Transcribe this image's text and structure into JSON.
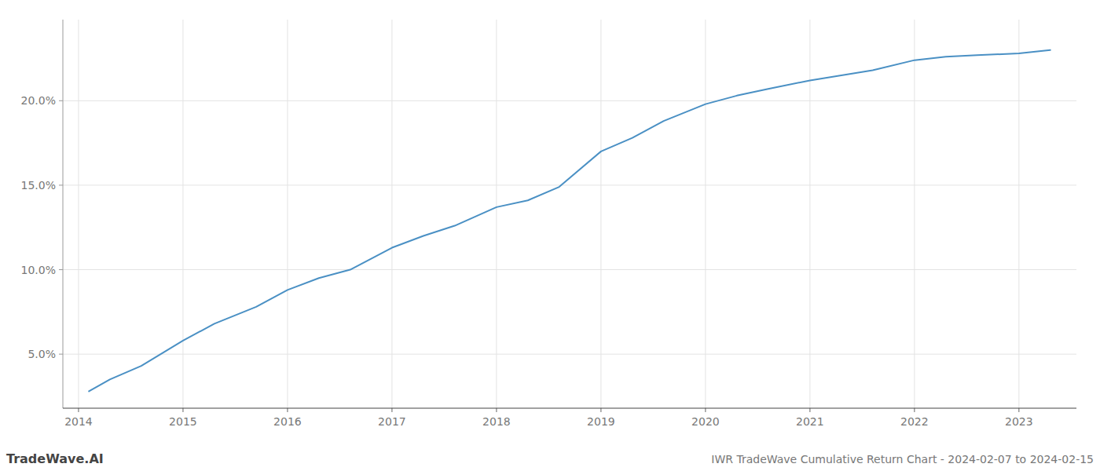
{
  "chart_data": {
    "type": "line",
    "title": "IWR TradeWave Cumulative Return Chart - 2024-02-07 to 2024-02-15",
    "annotations": [
      "TradeWave.AI"
    ],
    "x": [
      2014.1,
      2014.3,
      2014.6,
      2015.0,
      2015.3,
      2015.7,
      2016.0,
      2016.3,
      2016.6,
      2017.0,
      2017.3,
      2017.6,
      2018.0,
      2018.3,
      2018.6,
      2019.0,
      2019.3,
      2019.6,
      2020.0,
      2020.3,
      2020.6,
      2021.0,
      2021.3,
      2021.6,
      2022.0,
      2022.3,
      2022.6,
      2023.0,
      2023.3
    ],
    "values": [
      0.028,
      0.035,
      0.043,
      0.058,
      0.068,
      0.078,
      0.088,
      0.095,
      0.1,
      0.113,
      0.12,
      0.126,
      0.137,
      0.141,
      0.149,
      0.17,
      0.178,
      0.188,
      0.198,
      0.203,
      0.207,
      0.212,
      0.215,
      0.218,
      0.224,
      0.226,
      0.227,
      0.228,
      0.23
    ],
    "color": "#4a90c4",
    "xlim": [
      2013.85,
      2023.55
    ],
    "ylim": [
      0.018,
      0.248
    ],
    "xticks": [
      2014,
      2015,
      2016,
      2017,
      2018,
      2019,
      2020,
      2021,
      2022,
      2023
    ],
    "yticks": [
      {
        "value": 0.05,
        "label": "5.0%"
      },
      {
        "value": 0.1,
        "label": "10.0%"
      },
      {
        "value": 0.15,
        "label": "15.0%"
      },
      {
        "value": 0.2,
        "label": "20.0%"
      }
    ],
    "grid": true
  }
}
